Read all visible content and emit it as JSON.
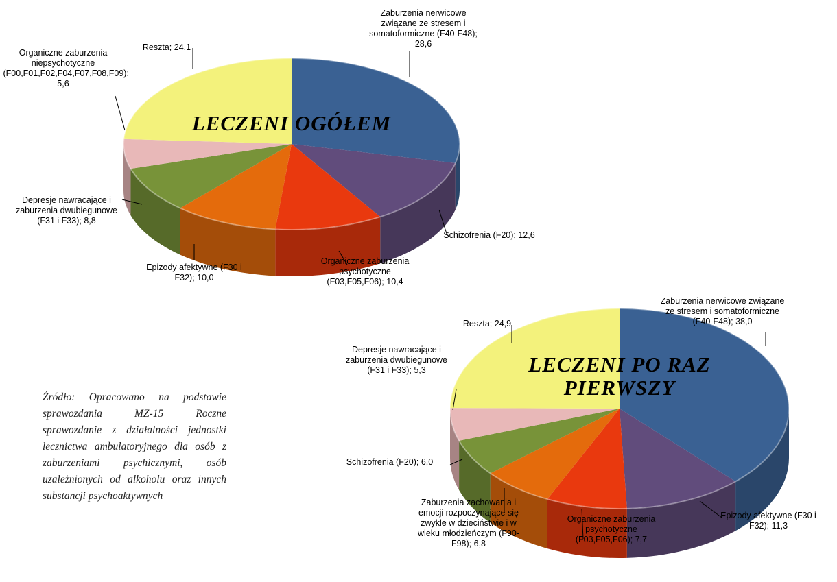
{
  "chart_data": [
    {
      "type": "pie3d",
      "title": "LECZENI OGÓŁEM",
      "categories": [
        "Zaburzenia nerwicowe związane ze stresem i somatoformiczne (F40-F48)",
        "Schizofrenia (F20)",
        "Organiczne zaburzenia psychotyczne (F03,F05,F06)",
        "Epizody afektywne (F30 i F32)",
        "Depresje nawracające i zaburzenia dwubiegunowe (F31 i F33)",
        "Organiczne zaburzenia niepsychotyczne (F00,F01,F02,F04,F07,F08,F09)",
        "Reszta"
      ],
      "values": [
        28.6,
        12.6,
        10.4,
        10.0,
        8.8,
        5.6,
        24.1
      ],
      "value_labels": [
        "28,6",
        "12,6",
        "10,4",
        "10,0",
        "8,8",
        "5,6",
        "24,1"
      ],
      "label_separator": "; ",
      "colors": [
        "#3a6193",
        "#614c7c",
        "#e9390e",
        "#e46b0c",
        "#789339",
        "#e8b8b8",
        "#f3f27c"
      ]
    },
    {
      "type": "pie3d",
      "title": "LECZENI PO RAZ PIERWSZY",
      "categories": [
        "Zaburzenia nerwicowe związane ze stresem i somatoformiczne (F40-F48)",
        "Epizody afektywne (F30 i F32)",
        "Organiczne zaburzenia psychotyczne (F03,F05,F06)",
        "Zaburzenia zachowania i emocji rozpoczynające się zwykle w dzieciństwie i w wieku młodzieńczym (F90-F98)",
        "Schizofrenia (F20)",
        "Depresje nawracające i zaburzenia dwubiegunowe (F31 i F33)",
        "Reszta"
      ],
      "values": [
        38.0,
        11.3,
        7.7,
        6.8,
        6.0,
        5.3,
        24.9
      ],
      "value_labels": [
        "38,0",
        "11,3",
        "7,7",
        "6,8",
        "6,0",
        "5,3",
        "24,9"
      ],
      "label_separator": "; ",
      "colors": [
        "#3a6193",
        "#614c7c",
        "#e9390e",
        "#e46b0c",
        "#789339",
        "#e8b8b8",
        "#f3f27c"
      ]
    }
  ],
  "source": "Źródło: Opracowano na podstawie sprawozdania MZ-15 Roczne sprawozdanie z działalności jednostki lecznictwa ambulatoryjnego dla osób z zaburzeniami psychicznymi, osób uzależnionych od alkoholu oraz innych substancji psychoaktywnych"
}
